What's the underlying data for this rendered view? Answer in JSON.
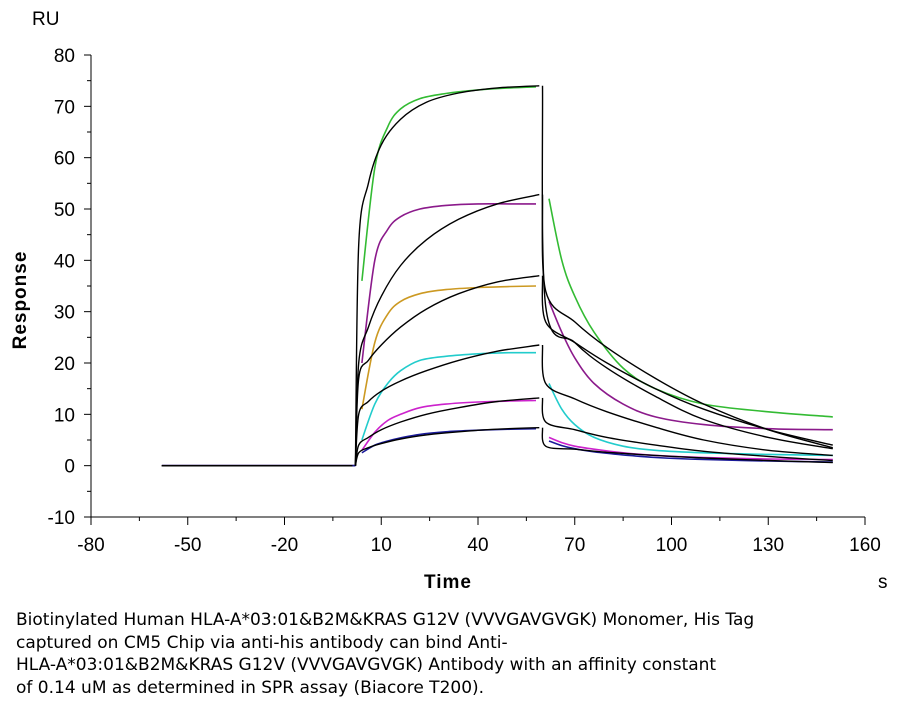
{
  "chart_data": {
    "type": "line",
    "y_unit": "RU",
    "x_unit": "s",
    "xlabel": "Time",
    "ylabel": "Response",
    "xlim": [
      -80,
      160
    ],
    "ylim": [
      -10,
      80
    ],
    "x_ticks": [
      -80,
      -50,
      -20,
      10,
      40,
      70,
      100,
      130,
      160
    ],
    "y_ticks": [
      -10,
      0,
      10,
      20,
      30,
      40,
      50,
      60,
      70,
      80
    ],
    "grid": false,
    "legend": "none",
    "injection_start": 2,
    "injection_end": 60,
    "experimental_series": [
      {
        "color": "#33bb33",
        "baseline_x": [
          -58,
          2
        ],
        "baseline_y": 0,
        "assoc_x": [
          4,
          8,
          12,
          16,
          22,
          30,
          40,
          50,
          58
        ],
        "assoc_y": [
          36,
          58,
          66,
          69.5,
          71.5,
          72.5,
          73.2,
          73.6,
          73.8
        ],
        "dissoc_x": [
          62,
          66,
          70,
          76,
          85,
          95,
          110,
          130,
          150
        ],
        "dissoc_y": [
          52,
          40,
          33,
          26,
          19,
          15,
          12,
          10.5,
          9.5
        ]
      },
      {
        "color": "#8b1a8b",
        "baseline_x": [
          -58,
          2
        ],
        "baseline_y": 0,
        "assoc_x": [
          4,
          8,
          12,
          16,
          22,
          30,
          40,
          50,
          58
        ],
        "assoc_y": [
          20,
          40,
          46,
          48.5,
          50,
          50.7,
          51,
          51,
          51
        ],
        "dissoc_x": [
          62,
          66,
          70,
          76,
          85,
          95,
          110,
          130,
          150
        ],
        "dissoc_y": [
          32,
          26,
          21,
          16,
          12,
          9.5,
          8,
          7.2,
          7
        ]
      },
      {
        "color": "#cc9922",
        "baseline_x": [
          -58,
          2
        ],
        "baseline_y": 0,
        "assoc_x": [
          4,
          8,
          12,
          16,
          22,
          30,
          40,
          50,
          58
        ],
        "assoc_y": [
          11,
          24,
          29.5,
          32,
          33.5,
          34.3,
          34.7,
          34.9,
          35
        ]
      },
      {
        "color": "#22cccc",
        "baseline_x": [
          -58,
          2
        ],
        "baseline_y": 0,
        "assoc_x": [
          4,
          8,
          12,
          16,
          22,
          30,
          40,
          50,
          58
        ],
        "assoc_y": [
          5,
          12,
          16,
          18.5,
          20.5,
          21.3,
          21.8,
          22,
          22
        ],
        "dissoc_x": [
          62,
          66,
          70,
          76,
          85,
          95,
          110,
          130,
          150
        ],
        "dissoc_y": [
          16,
          11,
          8,
          5.5,
          3.8,
          3,
          2.5,
          2.2,
          2
        ]
      },
      {
        "color": "#cc22cc",
        "baseline_x": [
          -58,
          2
        ],
        "baseline_y": 0,
        "assoc_x": [
          4,
          8,
          12,
          16,
          22,
          30,
          40,
          50,
          58
        ],
        "assoc_y": [
          3,
          6.5,
          8.8,
          10,
          11.3,
          12,
          12.4,
          12.6,
          12.7
        ],
        "dissoc_x": [
          62,
          66,
          70,
          76,
          85,
          95,
          110,
          130,
          150
        ],
        "dissoc_y": [
          5.5,
          4.5,
          3.8,
          3.2,
          2.5,
          2,
          1.6,
          1.3,
          1.2
        ]
      },
      {
        "color": "#1a1a99",
        "baseline_x": [
          -58,
          2
        ],
        "baseline_y": 0,
        "assoc_x": [
          4,
          8,
          12,
          16,
          22,
          30,
          40,
          50,
          58
        ],
        "assoc_y": [
          2.5,
          4,
          4.8,
          5.4,
          6.1,
          6.6,
          6.9,
          7.1,
          7.2
        ],
        "dissoc_x": [
          62,
          66,
          70,
          76,
          85,
          95,
          110,
          130,
          150
        ],
        "dissoc_y": [
          4.8,
          3.9,
          3.3,
          2.7,
          2.1,
          1.6,
          1.2,
          0.9,
          0.7
        ]
      }
    ],
    "fit_series": [
      {
        "color": "#000000",
        "baseline_x": [
          -58,
          1
        ],
        "baseline_y": 0,
        "assoc_x": [
          2,
          3,
          6,
          10,
          16,
          24,
          34,
          46,
          59
        ],
        "assoc_y": [
          0,
          43,
          55,
          62.5,
          67.5,
          70.8,
          72.6,
          73.6,
          74
        ],
        "dissoc_x": [
          60,
          61,
          70,
          80,
          95,
          110,
          130,
          150
        ],
        "dissoc_y": [
          74,
          31,
          24,
          19,
          13.5,
          9,
          5.5,
          3.3
        ]
      },
      {
        "color": "#000000",
        "baseline_x": [
          -58,
          1
        ],
        "baseline_y": 0,
        "assoc_x": [
          2,
          3,
          6,
          10,
          16,
          24,
          34,
          46,
          59
        ],
        "assoc_y": [
          0,
          20,
          27,
          33,
          39,
          44,
          48,
          51,
          52.8
        ],
        "dissoc_x": [
          60,
          61,
          70,
          80,
          95,
          110,
          130,
          150
        ],
        "dissoc_y": [
          52.8,
          34,
          28,
          23,
          17,
          12,
          7,
          3.5
        ]
      },
      {
        "color": "#000000",
        "baseline_x": [
          -58,
          1
        ],
        "baseline_y": 0,
        "assoc_x": [
          2,
          3,
          6,
          10,
          16,
          24,
          34,
          46,
          59
        ],
        "assoc_y": [
          0,
          17,
          20.5,
          23.5,
          27,
          30.5,
          33.5,
          35.8,
          37
        ],
        "dissoc_x": [
          60,
          61,
          70,
          80,
          95,
          110,
          130,
          150
        ],
        "dissoc_y": [
          37,
          28,
          24,
          20,
          15,
          11,
          7,
          4
        ]
      },
      {
        "color": "#000000",
        "baseline_x": [
          -58,
          1
        ],
        "baseline_y": 0,
        "assoc_x": [
          2,
          3,
          6,
          10,
          16,
          24,
          34,
          46,
          59
        ],
        "assoc_y": [
          0,
          10,
          12.5,
          14.5,
          16.5,
          18.5,
          20.5,
          22.3,
          23.5
        ],
        "dissoc_x": [
          60,
          61,
          70,
          80,
          95,
          110,
          130,
          150
        ],
        "dissoc_y": [
          23.5,
          16,
          13,
          10.5,
          7.5,
          5,
          3,
          2
        ]
      },
      {
        "color": "#000000",
        "baseline_x": [
          -58,
          1
        ],
        "baseline_y": 0,
        "assoc_x": [
          2,
          3,
          6,
          10,
          16,
          24,
          34,
          46,
          59
        ],
        "assoc_y": [
          0,
          4,
          5.5,
          7,
          8.5,
          10,
          11.3,
          12.5,
          13.2
        ],
        "dissoc_x": [
          60,
          61,
          70,
          80,
          95,
          110,
          130,
          150
        ],
        "dissoc_y": [
          13.2,
          8.5,
          7,
          5.5,
          4,
          2.8,
          1.8,
          1
        ]
      },
      {
        "color": "#000000",
        "baseline_x": [
          -58,
          1
        ],
        "baseline_y": 0,
        "assoc_x": [
          2,
          3,
          6,
          10,
          16,
          24,
          34,
          46,
          59
        ],
        "assoc_y": [
          0,
          2.5,
          3.5,
          4.3,
          5.2,
          6,
          6.6,
          7.1,
          7.4
        ],
        "dissoc_x": [
          60,
          61,
          70,
          80,
          95,
          110,
          130,
          150
        ],
        "dissoc_y": [
          7.4,
          3.8,
          3.2,
          2.6,
          2,
          1.5,
          1,
          0.6
        ]
      }
    ]
  },
  "caption": {
    "lines": [
      "Biotinylated Human HLA-A*03:01&B2M&KRAS G12V (VVVGAVGVGK) Monomer, His Tag",
      "captured on CM5 Chip via anti-his antibody can bind Anti-",
      "HLA-A*03:01&B2M&KRAS G12V (VVVGAVGVGK) Antibody with an affinity constant",
      "of 0.14 uM as determined in SPR assay (Biacore T200)."
    ]
  }
}
